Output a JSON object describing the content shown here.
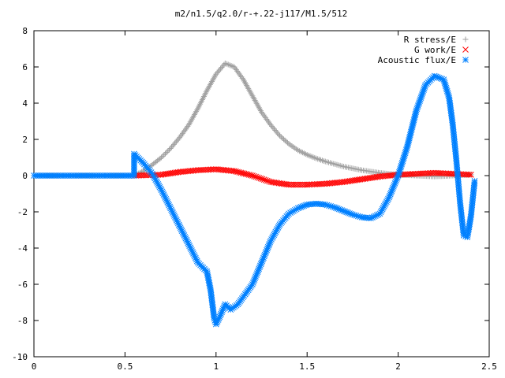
{
  "chart_data": {
    "type": "scatter",
    "title": "m2/n1.5/q2.0/r-+.22-j117/M1.5/512",
    "xlabel": "",
    "ylabel": "",
    "xlim": [
      0,
      2.5
    ],
    "ylim": [
      -10,
      8
    ],
    "x_ticks": [
      "0",
      "0.5",
      "1",
      "1.5",
      "2",
      "2.5"
    ],
    "y_ticks": [
      "-10",
      "-8",
      "-6",
      "-4",
      "-2",
      "0",
      "2",
      "4",
      "6",
      "8"
    ],
    "grid": false,
    "legend_position": "top-right",
    "series": [
      {
        "name": "R stress/E",
        "marker": "plus",
        "color": "#a0a0a0",
        "points": [
          [
            0.0,
            0.0
          ],
          [
            0.55,
            0.0
          ],
          [
            0.6,
            0.25
          ],
          [
            0.65,
            0.6
          ],
          [
            0.7,
            1.0
          ],
          [
            0.75,
            1.5
          ],
          [
            0.8,
            2.1
          ],
          [
            0.85,
            2.8
          ],
          [
            0.9,
            3.7
          ],
          [
            0.95,
            4.7
          ],
          [
            1.0,
            5.6
          ],
          [
            1.05,
            6.2
          ],
          [
            1.1,
            6.0
          ],
          [
            1.15,
            5.3
          ],
          [
            1.2,
            4.4
          ],
          [
            1.25,
            3.5
          ],
          [
            1.3,
            2.8
          ],
          [
            1.35,
            2.2
          ],
          [
            1.4,
            1.75
          ],
          [
            1.45,
            1.4
          ],
          [
            1.5,
            1.15
          ],
          [
            1.55,
            0.95
          ],
          [
            1.6,
            0.78
          ],
          [
            1.7,
            0.5
          ],
          [
            1.8,
            0.3
          ],
          [
            1.9,
            0.15
          ],
          [
            2.0,
            0.05
          ],
          [
            2.1,
            0.0
          ],
          [
            2.2,
            -0.05
          ],
          [
            2.3,
            0.0
          ],
          [
            2.4,
            0.05
          ]
        ]
      },
      {
        "name": "G work/E",
        "marker": "cross",
        "color": "#ff0000",
        "points": [
          [
            0.55,
            0.0
          ],
          [
            0.7,
            0.05
          ],
          [
            0.8,
            0.2
          ],
          [
            0.9,
            0.3
          ],
          [
            1.0,
            0.35
          ],
          [
            1.1,
            0.25
          ],
          [
            1.2,
            0.0
          ],
          [
            1.3,
            -0.35
          ],
          [
            1.4,
            -0.5
          ],
          [
            1.5,
            -0.5
          ],
          [
            1.6,
            -0.45
          ],
          [
            1.7,
            -0.35
          ],
          [
            1.8,
            -0.2
          ],
          [
            1.9,
            -0.05
          ],
          [
            2.0,
            0.05
          ],
          [
            2.1,
            0.1
          ],
          [
            2.2,
            0.15
          ],
          [
            2.3,
            0.1
          ],
          [
            2.4,
            0.05
          ]
        ]
      },
      {
        "name": "Acoustic flux/E",
        "marker": "star",
        "color": "#0080ff",
        "points": [
          [
            0.0,
            0.0
          ],
          [
            0.1,
            0.0
          ],
          [
            0.2,
            0.0
          ],
          [
            0.3,
            0.0
          ],
          [
            0.4,
            0.0
          ],
          [
            0.5,
            0.0
          ],
          [
            0.55,
            0.0
          ],
          [
            0.55,
            1.2
          ],
          [
            0.6,
            0.7
          ],
          [
            0.65,
            0.1
          ],
          [
            0.7,
            -0.8
          ],
          [
            0.75,
            -1.8
          ],
          [
            0.8,
            -2.8
          ],
          [
            0.85,
            -3.8
          ],
          [
            0.9,
            -4.8
          ],
          [
            0.95,
            -5.3
          ],
          [
            0.97,
            -6.3
          ],
          [
            0.99,
            -7.9
          ],
          [
            1.0,
            -8.2
          ],
          [
            1.02,
            -7.8
          ],
          [
            1.05,
            -7.1
          ],
          [
            1.08,
            -7.4
          ],
          [
            1.12,
            -7.1
          ],
          [
            1.2,
            -6.0
          ],
          [
            1.25,
            -4.8
          ],
          [
            1.3,
            -3.6
          ],
          [
            1.35,
            -2.7
          ],
          [
            1.4,
            -2.1
          ],
          [
            1.45,
            -1.8
          ],
          [
            1.5,
            -1.6
          ],
          [
            1.55,
            -1.55
          ],
          [
            1.6,
            -1.6
          ],
          [
            1.65,
            -1.75
          ],
          [
            1.7,
            -1.95
          ],
          [
            1.75,
            -2.15
          ],
          [
            1.8,
            -2.3
          ],
          [
            1.85,
            -2.35
          ],
          [
            1.9,
            -2.1
          ],
          [
            1.95,
            -1.2
          ],
          [
            2.0,
            0.0
          ],
          [
            2.05,
            1.6
          ],
          [
            2.1,
            3.6
          ],
          [
            2.15,
            5.0
          ],
          [
            2.2,
            5.5
          ],
          [
            2.25,
            5.3
          ],
          [
            2.28,
            4.3
          ],
          [
            2.3,
            2.8
          ],
          [
            2.32,
            0.8
          ],
          [
            2.34,
            -1.5
          ],
          [
            2.36,
            -3.3
          ],
          [
            2.38,
            -3.4
          ],
          [
            2.4,
            -2.2
          ],
          [
            2.42,
            -0.3
          ]
        ]
      }
    ]
  }
}
